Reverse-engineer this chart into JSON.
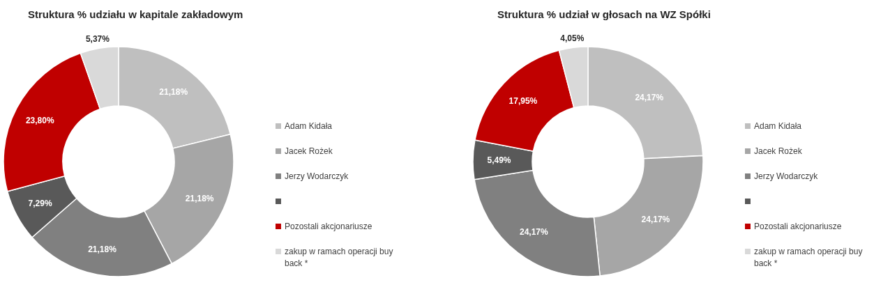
{
  "chart_data": [
    {
      "type": "donut",
      "title": "Struktura % udziału w kapitale zakładowym",
      "categories": [
        "Adam Kidała",
        "Jacek Rożek",
        "Jerzy Wodarczyk",
        null,
        "Pozostali akcjonariusze",
        "zakup w ramach operacji buy back *"
      ],
      "values": [
        21.18,
        21.18,
        21.18,
        7.29,
        23.8,
        5.37
      ],
      "value_labels": [
        "21,18%",
        "21,18%",
        "21,18%",
        "7,29%",
        "23,80%",
        "5,37%"
      ],
      "colors": [
        "#bfbfbf",
        "#a6a6a6",
        "#808080",
        "#595959",
        "#c00000",
        "#d9d9d9"
      ],
      "legend": "right"
    },
    {
      "type": "donut",
      "title": "Struktura % udział w głosach na WZ Spółki",
      "categories": [
        "Adam Kidała",
        "Jacek Rożek",
        "Jerzy Wodarczyk",
        null,
        "Pozostali akcjonariusze",
        "zakup w ramach operacji buy back *"
      ],
      "values": [
        24.17,
        24.17,
        24.17,
        5.49,
        17.95,
        4.05
      ],
      "value_labels": [
        "24,17%",
        "24,17%",
        "24,17%",
        "5,49%",
        "17,95%",
        "4,05%"
      ],
      "colors": [
        "#bfbfbf",
        "#a6a6a6",
        "#808080",
        "#595959",
        "#c00000",
        "#d9d9d9"
      ],
      "legend": "right"
    }
  ]
}
